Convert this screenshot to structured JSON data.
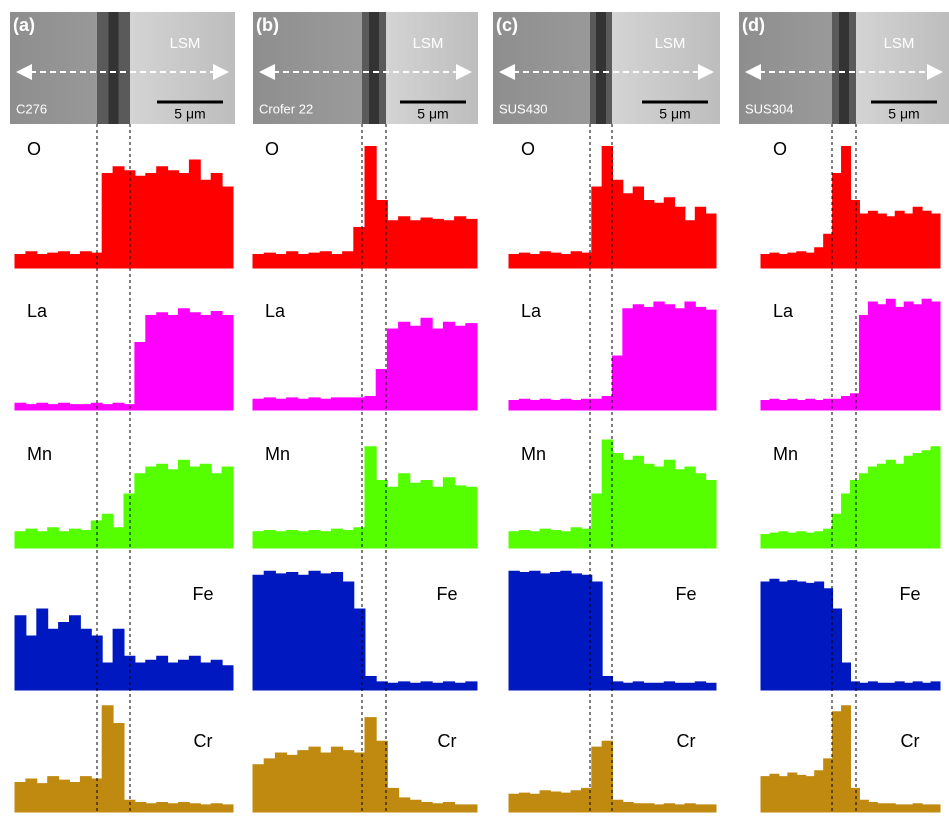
{
  "figure": {
    "elements": [
      {
        "name": "O",
        "color": "#ff0000"
      },
      {
        "name": "La",
        "color": "#ff00ff"
      },
      {
        "name": "Mn",
        "color": "#55ff00"
      },
      {
        "name": "Fe",
        "color": "#0018c0"
      },
      {
        "name": "Cr",
        "color": "#c08a10"
      }
    ],
    "panels": [
      {
        "label": "(a)",
        "material": "C276",
        "region": "LSM",
        "scale": "5 μm",
        "profiles": [
          [
            10,
            12,
            10,
            11,
            12,
            10,
            12,
            11,
            70,
            75,
            72,
            68,
            70,
            75,
            72,
            70,
            80,
            65,
            70,
            60
          ],
          [
            5,
            4,
            5,
            4,
            5,
            4,
            4,
            5,
            4,
            5,
            4,
            50,
            70,
            72,
            70,
            75,
            72,
            70,
            73,
            70
          ],
          [
            12,
            14,
            12,
            15,
            12,
            14,
            13,
            20,
            25,
            15,
            40,
            55,
            60,
            62,
            58,
            65,
            60,
            62,
            55,
            60
          ],
          [
            55,
            40,
            60,
            45,
            50,
            55,
            45,
            40,
            20,
            45,
            25,
            20,
            22,
            25,
            20,
            22,
            25,
            20,
            22,
            18
          ],
          [
            25,
            28,
            24,
            30,
            27,
            25,
            30,
            28,
            90,
            75,
            10,
            8,
            7,
            8,
            7,
            8,
            7,
            6,
            7,
            6
          ]
        ]
      },
      {
        "label": "(b)",
        "material": "Crofer 22",
        "region": "LSM",
        "scale": "5 μm",
        "profiles": [
          [
            10,
            11,
            10,
            12,
            10,
            11,
            12,
            10,
            12,
            30,
            90,
            50,
            35,
            38,
            35,
            37,
            36,
            35,
            38,
            36
          ],
          [
            8,
            9,
            8,
            9,
            8,
            9,
            8,
            9,
            9,
            9,
            10,
            30,
            60,
            65,
            62,
            68,
            60,
            65,
            62,
            64
          ],
          [
            12,
            13,
            12,
            13,
            12,
            13,
            12,
            14,
            13,
            15,
            75,
            50,
            45,
            55,
            48,
            50,
            45,
            52,
            46,
            45
          ],
          [
            85,
            88,
            86,
            87,
            85,
            88,
            86,
            87,
            80,
            60,
            10,
            6,
            5,
            6,
            5,
            6,
            5,
            6,
            5,
            6
          ],
          [
            40,
            45,
            50,
            48,
            52,
            55,
            50,
            55,
            52,
            50,
            80,
            60,
            20,
            12,
            10,
            8,
            7,
            8,
            6,
            6
          ]
        ]
      },
      {
        "label": "(c)",
        "material": "SUS430",
        "region": "LSM",
        "scale": "5 μm",
        "profiles": [
          [
            10,
            11,
            10,
            12,
            11,
            10,
            12,
            11,
            60,
            90,
            65,
            55,
            60,
            50,
            48,
            52,
            45,
            35,
            45,
            40
          ],
          [
            7,
            8,
            7,
            8,
            7,
            8,
            7,
            8,
            8,
            10,
            40,
            75,
            78,
            76,
            80,
            78,
            75,
            80,
            76,
            74
          ],
          [
            12,
            13,
            12,
            14,
            13,
            12,
            15,
            14,
            40,
            80,
            70,
            65,
            68,
            62,
            60,
            65,
            58,
            60,
            55,
            50
          ],
          [
            88,
            87,
            88,
            86,
            87,
            88,
            86,
            85,
            80,
            10,
            6,
            5,
            6,
            5,
            5,
            6,
            5,
            5,
            6,
            5
          ],
          [
            15,
            16,
            15,
            18,
            17,
            16,
            18,
            20,
            55,
            60,
            10,
            8,
            7,
            7,
            6,
            7,
            6,
            7,
            6,
            6
          ]
        ]
      },
      {
        "label": "(d)",
        "material": "SUS304",
        "region": "LSM",
        "scale": "5 μm",
        "profiles": [
          [
            10,
            11,
            10,
            11,
            12,
            11,
            15,
            25,
            70,
            90,
            50,
            40,
            42,
            40,
            38,
            42,
            40,
            45,
            42,
            40
          ],
          [
            7,
            8,
            7,
            8,
            7,
            8,
            7,
            8,
            8,
            10,
            12,
            70,
            80,
            78,
            82,
            76,
            80,
            78,
            82,
            80
          ],
          [
            10,
            11,
            12,
            11,
            12,
            11,
            12,
            14,
            25,
            40,
            50,
            55,
            60,
            62,
            65,
            62,
            68,
            70,
            72,
            75
          ],
          [
            80,
            82,
            80,
            81,
            80,
            79,
            80,
            75,
            60,
            20,
            6,
            5,
            6,
            5,
            5,
            6,
            5,
            6,
            5,
            6
          ],
          [
            30,
            32,
            30,
            33,
            31,
            30,
            35,
            45,
            85,
            90,
            20,
            10,
            8,
            7,
            7,
            6,
            6,
            7,
            6,
            6
          ]
        ]
      }
    ]
  }
}
